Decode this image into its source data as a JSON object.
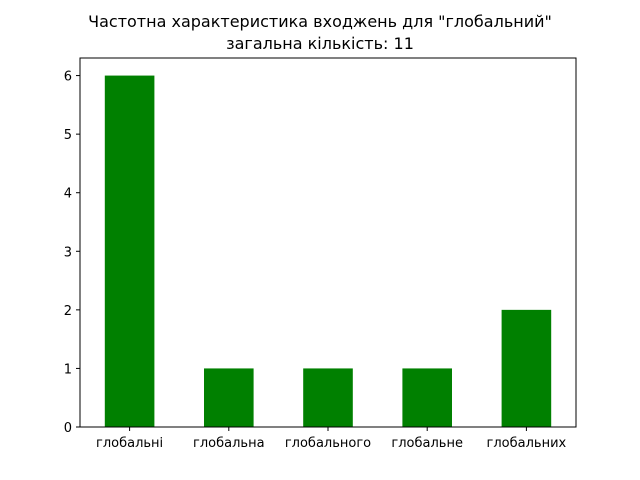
{
  "chart_data": {
    "type": "bar",
    "title": "Частотна характеристика входжень для \"глобальний\"",
    "subtitle": "загальна кількість: 11",
    "categories": [
      "глобальні",
      "глобальна",
      "глобального",
      "глобальне",
      "глобальних"
    ],
    "values": [
      6,
      1,
      1,
      1,
      2
    ],
    "yticks": [
      "0",
      "1",
      "2",
      "3",
      "4",
      "5",
      "6"
    ],
    "ylim": [
      0,
      6.3
    ],
    "bar_color": "#008000",
    "grid": false,
    "legend": false
  }
}
